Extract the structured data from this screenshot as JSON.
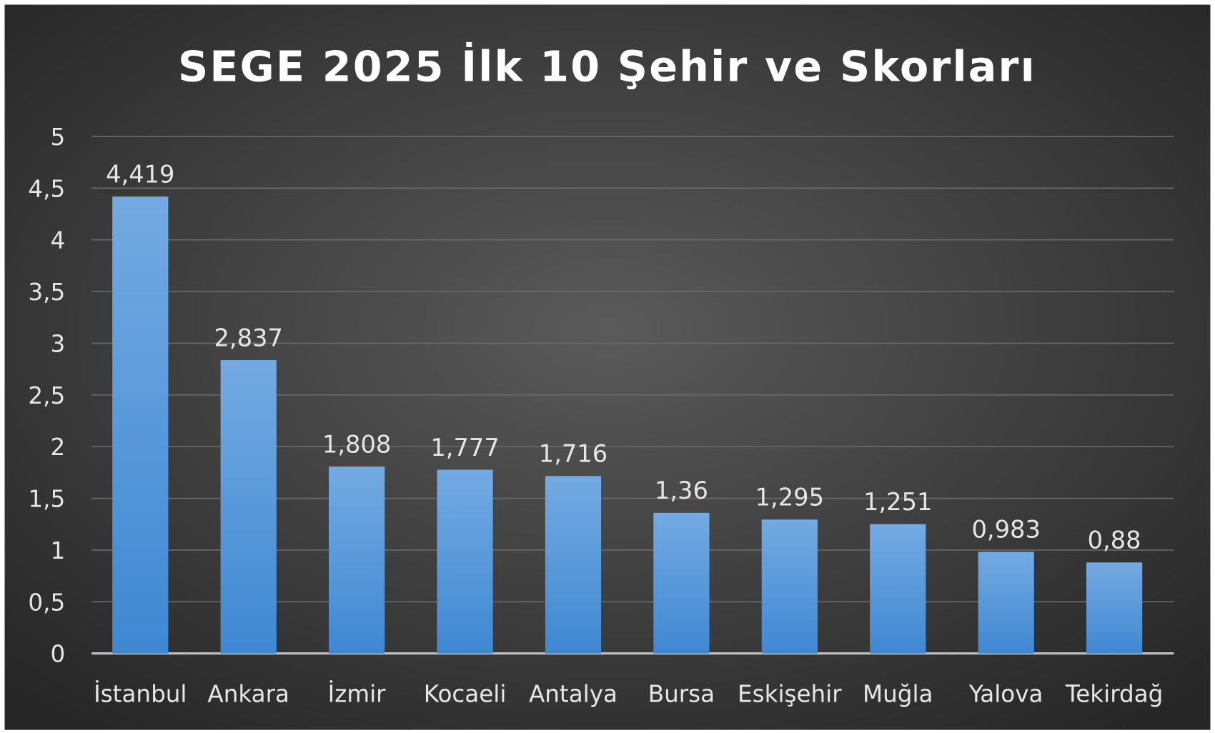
{
  "chart_data": {
    "type": "bar",
    "title": "SEGE 2025 İlk 10 Şehir ve Skorları",
    "xlabel": "",
    "ylabel": "",
    "categories": [
      "İstanbul",
      "Ankara",
      "İzmir",
      "Kocaeli",
      "Antalya",
      "Bursa",
      "Eskişehir",
      "Muğla",
      "Yalova",
      "Tekirdağ"
    ],
    "values": [
      4.419,
      2.837,
      1.808,
      1.777,
      1.716,
      1.36,
      1.295,
      1.251,
      0.983,
      0.88
    ],
    "data_labels": [
      "4,419",
      "2,837",
      "1,808",
      "1,777",
      "1,716",
      "1,36",
      "1,295",
      "1,251",
      "0,983",
      "0,88"
    ],
    "ylim": [
      0,
      5
    ],
    "yticks": [
      "0",
      "0,5",
      "1",
      "1,5",
      "2",
      "2,5",
      "3",
      "3,5",
      "4",
      "4,5",
      "5"
    ],
    "grid": true,
    "legend": "none",
    "colors": {
      "bar_top": "#74aae2",
      "bar_bottom": "#3f88d2",
      "background_center": "#5a5a5a",
      "background_edge": "#262626",
      "text": "#e6e6e6",
      "title": "#ffffff"
    }
  }
}
